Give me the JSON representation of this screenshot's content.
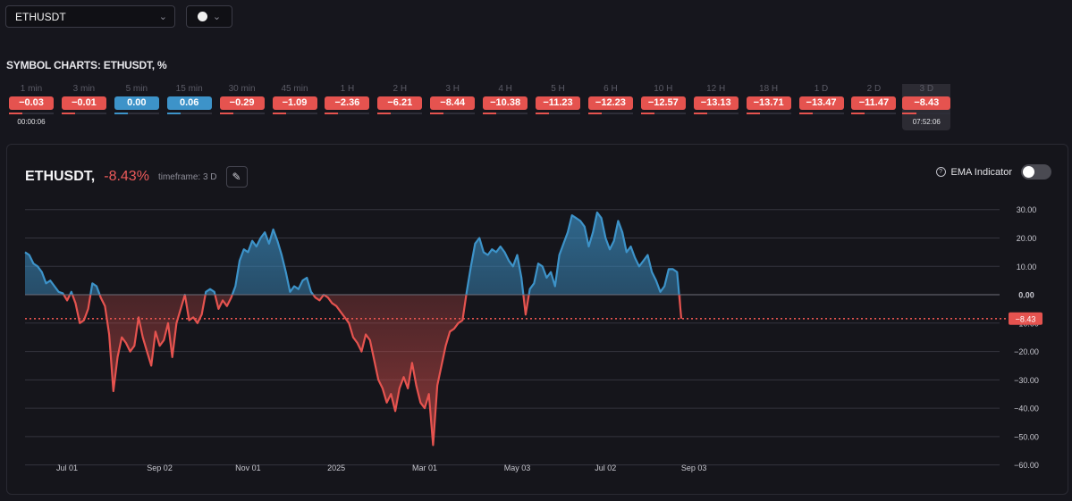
{
  "toolbar": {
    "symbol": "ETHUSDT",
    "color_value": "white",
    "icons": [
      "chevron-down-icon",
      "color-dot-icon"
    ]
  },
  "section_title": "SYMBOL CHARTS: ETHUSDT, %",
  "timeframes": [
    {
      "label": "1 min",
      "value": "−0.03",
      "status": "neg"
    },
    {
      "label": "3 min",
      "value": "−0.01",
      "status": "neg"
    },
    {
      "label": "5 min",
      "value": "0.00",
      "status": "pos"
    },
    {
      "label": "15 min",
      "value": "0.06",
      "status": "pos"
    },
    {
      "label": "30 min",
      "value": "−0.29",
      "status": "neg"
    },
    {
      "label": "45 min",
      "value": "−1.09",
      "status": "neg"
    },
    {
      "label": "1 H",
      "value": "−2.36",
      "status": "neg"
    },
    {
      "label": "2 H",
      "value": "−6.21",
      "status": "neg"
    },
    {
      "label": "3 H",
      "value": "−8.44",
      "status": "neg"
    },
    {
      "label": "4 H",
      "value": "−10.38",
      "status": "neg"
    },
    {
      "label": "5 H",
      "value": "−11.23",
      "status": "neg"
    },
    {
      "label": "6 H",
      "value": "−12.23",
      "status": "neg"
    },
    {
      "label": "10 H",
      "value": "−12.57",
      "status": "neg"
    },
    {
      "label": "12 H",
      "value": "−13.13",
      "status": "neg"
    },
    {
      "label": "18 H",
      "value": "−13.71",
      "status": "neg"
    },
    {
      "label": "1 D",
      "value": "−13.47",
      "status": "neg"
    },
    {
      "label": "2 D",
      "value": "−11.47",
      "status": "neg"
    },
    {
      "label": "3 D",
      "value": "−8.43",
      "status": "neg"
    }
  ],
  "timeframe_first_time": "00:00:06",
  "timeframe_active_time": "07:52:06",
  "panel": {
    "symbol": "ETHUSDT,",
    "change": "-8.43%",
    "timeframe_label": "timeframe: 3 D",
    "ema_label": "EMA Indicator",
    "ema_enabled": false
  },
  "colors": {
    "positive": "#3d93c9",
    "negative": "#e5534f",
    "badge_positive": "#3d93c9",
    "badge_negative": "#e5534f"
  },
  "chart_data": {
    "type": "area",
    "title": "",
    "xlabel": "",
    "ylabel": "%",
    "ylim": [
      -62,
      34
    ],
    "yticks": [
      30,
      20,
      10,
      0,
      -10,
      -20,
      -30,
      -40,
      -50,
      -60
    ],
    "ytick_labels": [
      "30.00",
      "20.00",
      "10.00",
      "0.00",
      "−10.00",
      "−20.00",
      "−30.00",
      "−40.00",
      "−50.00",
      "−60.00"
    ],
    "xticks": [
      {
        "label": "Jul 01",
        "i": 10
      },
      {
        "label": "Sep 02",
        "i": 32
      },
      {
        "label": "Nov 01",
        "i": 53
      },
      {
        "label": "2025",
        "i": 74
      },
      {
        "label": "Mar 01",
        "i": 95
      },
      {
        "label": "May 03",
        "i": 117
      },
      {
        "label": "Jul 02",
        "i": 138
      },
      {
        "label": "Sep 03",
        "i": 159
      }
    ],
    "last_value": -8.43,
    "last_label": "−8.43",
    "grid": true,
    "series": [
      {
        "values": [
          15,
          14,
          11,
          10,
          8,
          4,
          5,
          3,
          1,
          0.5,
          -2,
          1,
          -3,
          -10,
          -9,
          -5,
          4,
          3,
          -1,
          -4,
          -14,
          -34,
          -22,
          -15,
          -17,
          -20,
          -18,
          -8,
          -15,
          -20,
          -25,
          -13,
          -18,
          -16,
          -10,
          -22,
          -10,
          -5,
          0,
          -9,
          -8,
          -10,
          -7,
          1,
          2,
          1,
          -5,
          -2,
          -4,
          -1,
          3,
          12,
          16,
          15,
          19,
          17,
          20,
          22,
          18,
          23,
          19,
          14,
          8,
          1,
          3,
          2,
          5,
          6,
          1,
          -1,
          -2,
          0,
          -1,
          -3,
          -4,
          -6,
          -8,
          -10,
          -15,
          -17,
          -20,
          -14,
          -16,
          -23,
          -30,
          -33,
          -38,
          -35,
          -41,
          -33,
          -29,
          -33,
          -24,
          -32,
          -38,
          -40,
          -35,
          -53,
          -32,
          -25,
          -18,
          -13,
          -12,
          -10,
          -9,
          1,
          10,
          18,
          20,
          15,
          14,
          16,
          15,
          17,
          15,
          12,
          10,
          14,
          6,
          -7,
          2,
          4,
          11,
          10,
          6,
          8,
          3,
          14,
          18,
          22,
          28,
          27,
          26,
          24,
          17,
          22,
          29,
          27,
          20,
          16,
          19,
          26,
          22,
          15,
          17,
          13,
          10,
          12,
          14,
          8,
          5,
          1,
          3,
          9,
          9,
          8,
          -8.43
        ]
      }
    ]
  }
}
